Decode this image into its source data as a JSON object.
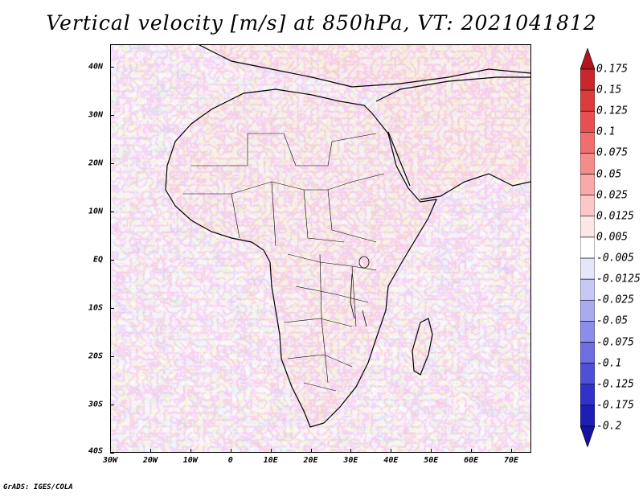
{
  "title": "Vertical velocity [m/s] at 850hPa, VT: 2021041812",
  "credit": "GrADS: IGES/COLA",
  "map": {
    "lat_range": [
      -40,
      45
    ],
    "lon_range": [
      -30,
      75
    ],
    "lat_ticks": [
      "40N",
      "30N",
      "20N",
      "10N",
      "EQ",
      "10S",
      "20S",
      "30S",
      "40S"
    ],
    "lon_ticks": [
      "30W",
      "20W",
      "10W",
      "0",
      "10E",
      "20E",
      "30E",
      "40E",
      "50E",
      "60E",
      "70E"
    ]
  },
  "colorbar": {
    "labels": [
      "0.175",
      "0.15",
      "0.125",
      "0.1",
      "0.075",
      "0.05",
      "0.025",
      "0.0125",
      "0.005",
      "-0.005",
      "-0.0125",
      "-0.025",
      "-0.05",
      "-0.075",
      "-0.1",
      "-0.125",
      "-0.175",
      "-0.2"
    ],
    "colors": [
      "#b4141e",
      "#c8282d",
      "#dc3c3c",
      "#e65050",
      "#f06e6e",
      "#f58c8c",
      "#f8aaaa",
      "#fbc8c8",
      "#fde6e6",
      "#ffffff",
      "#e6e6fa",
      "#c8c8f5",
      "#aaaaf0",
      "#8c8ceb",
      "#6e6ee1",
      "#5050d7",
      "#3232c8",
      "#1e1eb4",
      "#1414a0"
    ]
  }
}
